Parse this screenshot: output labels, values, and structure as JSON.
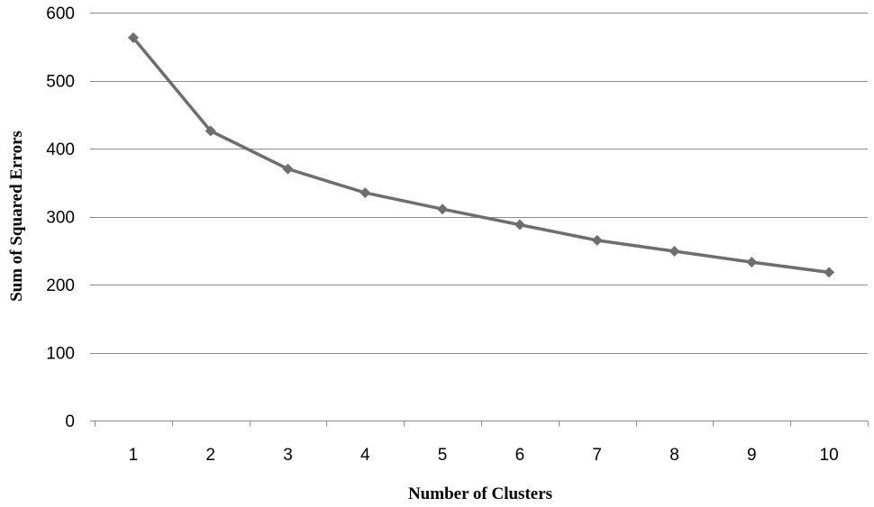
{
  "chart_data": {
    "type": "line",
    "xlabel": "Number of Clusters",
    "ylabel": "Sum of Squared Errors",
    "x": [
      1,
      2,
      3,
      4,
      5,
      6,
      7,
      8,
      9,
      10
    ],
    "series": [
      {
        "values": [
          563,
          426,
          370,
          335,
          311,
          288,
          265,
          249,
          233,
          218
        ]
      }
    ],
    "ylim": [
      0,
      600
    ],
    "yticks": [
      0,
      100,
      200,
      300,
      400,
      500,
      600
    ],
    "xtick_labels": [
      "1",
      "2",
      "3",
      "4",
      "5",
      "6",
      "7",
      "8",
      "9",
      "10"
    ],
    "ytick_labels": [
      "0",
      "100",
      "200",
      "300",
      "400",
      "500",
      "600"
    ],
    "grid": "horizontal",
    "legend": "none",
    "marker": "diamond",
    "colors": {
      "line": "#6e6e6e",
      "grid": "#8c8c8c"
    }
  }
}
